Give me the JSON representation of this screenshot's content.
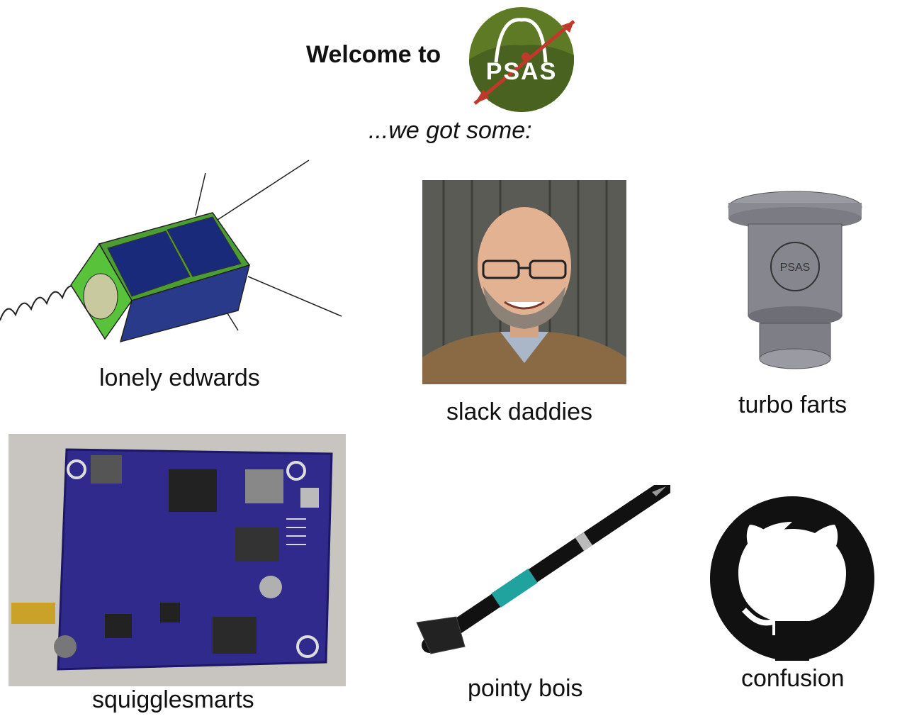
{
  "header": {
    "welcome_text": "Welcome to",
    "logo_text": "PSAS",
    "tagline": "...we got some:"
  },
  "items": [
    {
      "caption": "lonely edwards",
      "icon": "cubesat-icon"
    },
    {
      "caption": "slack daddies",
      "icon": "person-photo"
    },
    {
      "caption": "turbo farts",
      "icon": "rocket-engine-icon"
    },
    {
      "caption": "squigglesmarts",
      "icon": "circuit-board-icon"
    },
    {
      "caption": "pointy bois",
      "icon": "rocket-icon"
    },
    {
      "caption": "confusion",
      "icon": "github-icon"
    }
  ],
  "colors": {
    "logo_green": "#5f7a25",
    "logo_dark": "#3f5418",
    "arrow_red": "#c0392b",
    "board_purple": "#2f2a8c",
    "rocket_teal": "#20a39e",
    "cubesat_green": "#58c23a",
    "solar_blue": "#1a2a7a"
  }
}
